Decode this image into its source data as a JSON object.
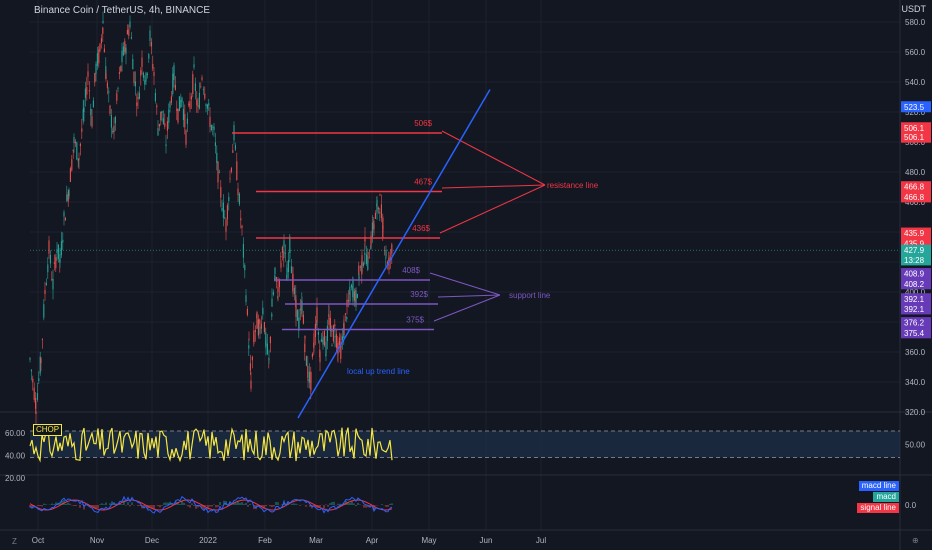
{
  "header": {
    "symbol_title": "Binance Coin / TetherUS, 4h, BINANCE",
    "currency": "USDT"
  },
  "chart_data": {
    "type": "candlestick",
    "price_axis": {
      "ticks": [
        580,
        560,
        540,
        520,
        500,
        480,
        460,
        440,
        420,
        400,
        380,
        360,
        340,
        320
      ],
      "range": [
        314,
        584
      ]
    },
    "time_axis": {
      "labels": [
        "Oct",
        "Nov",
        "Dec",
        "2022",
        "Feb",
        "Mar",
        "Apr",
        "May",
        "Jun",
        "Jul"
      ]
    },
    "price_path": [
      [
        30,
        355
      ],
      [
        36,
        325
      ],
      [
        41,
        355
      ],
      [
        45,
        400
      ],
      [
        49,
        428
      ],
      [
        53,
        405
      ],
      [
        57,
        430
      ],
      [
        60,
        420
      ],
      [
        64,
        448
      ],
      [
        69,
        470
      ],
      [
        74,
        500
      ],
      [
        79,
        490
      ],
      [
        84,
        520
      ],
      [
        88,
        545
      ],
      [
        92,
        515
      ],
      [
        96,
        550
      ],
      [
        100,
        560
      ],
      [
        103,
        580
      ],
      [
        106,
        545
      ],
      [
        110,
        520
      ],
      [
        114,
        505
      ],
      [
        118,
        535
      ],
      [
        122,
        555
      ],
      [
        126,
        565
      ],
      [
        130,
        580
      ],
      [
        134,
        545
      ],
      [
        138,
        525
      ],
      [
        142,
        555
      ],
      [
        146,
        540
      ],
      [
        150,
        570
      ],
      [
        154,
        545
      ],
      [
        158,
        510
      ],
      [
        162,
        520
      ],
      [
        166,
        500
      ],
      [
        170,
        525
      ],
      [
        174,
        545
      ],
      [
        178,
        520
      ],
      [
        182,
        530
      ],
      [
        186,
        505
      ],
      [
        190,
        525
      ],
      [
        194,
        545
      ],
      [
        198,
        520
      ],
      [
        202,
        545
      ],
      [
        206,
        530
      ],
      [
        210,
        515
      ],
      [
        214,
        505
      ],
      [
        218,
        480
      ],
      [
        222,
        460
      ],
      [
        226,
        445
      ],
      [
        230,
        475
      ],
      [
        234,
        505
      ],
      [
        238,
        470
      ],
      [
        242,
        440
      ],
      [
        246,
        400
      ],
      [
        249,
        365
      ],
      [
        251,
        340
      ],
      [
        254,
        370
      ],
      [
        257,
        380
      ],
      [
        260,
        375
      ],
      [
        263,
        390
      ],
      [
        266,
        365
      ],
      [
        269,
        352
      ],
      [
        272,
        390
      ],
      [
        275,
        410
      ],
      [
        278,
        400
      ],
      [
        281,
        420
      ],
      [
        284,
        430
      ],
      [
        287,
        410
      ],
      [
        290,
        432
      ],
      [
        293,
        405
      ],
      [
        296,
        390
      ],
      [
        299,
        378
      ],
      [
        302,
        392
      ],
      [
        305,
        365
      ],
      [
        308,
        345
      ],
      [
        311,
        340
      ],
      [
        314,
        368
      ],
      [
        317,
        384
      ],
      [
        320,
        360
      ],
      [
        323,
        372
      ],
      [
        326,
        362
      ],
      [
        329,
        382
      ],
      [
        332,
        370
      ],
      [
        335,
        375
      ],
      [
        338,
        364
      ],
      [
        341,
        362
      ],
      [
        344,
        376
      ],
      [
        347,
        388
      ],
      [
        350,
        398
      ],
      [
        353,
        403
      ],
      [
        356,
        395
      ],
      [
        359,
        412
      ],
      [
        362,
        418
      ],
      [
        365,
        430
      ],
      [
        368,
        420
      ],
      [
        371,
        436
      ],
      [
        374,
        445
      ],
      [
        377,
        455
      ],
      [
        380,
        460
      ],
      [
        383,
        442
      ],
      [
        386,
        425
      ],
      [
        389,
        420
      ],
      [
        392,
        428
      ]
    ],
    "levels": [
      {
        "label": "506$",
        "price": 506,
        "kind": "resistance",
        "from": "Jan",
        "to": "May"
      },
      {
        "label": "467$",
        "price": 467,
        "kind": "resistance",
        "from": "Jan",
        "to": "May"
      },
      {
        "label": "436$",
        "price": 436,
        "kind": "resistance",
        "from": "Jan",
        "to": "Apr"
      },
      {
        "label": "408$",
        "price": 408,
        "kind": "support",
        "from": "Feb",
        "to": "Apr"
      },
      {
        "label": "392$",
        "price": 392,
        "kind": "support",
        "from": "Feb",
        "to": "Apr"
      },
      {
        "label": "375$",
        "price": 375,
        "kind": "support",
        "from": "Feb",
        "to": "Apr"
      }
    ],
    "trend_line": {
      "label": "local up trend line",
      "from": [
        298,
        316
      ],
      "to": [
        490,
        535
      ]
    },
    "annotations": {
      "resistance": "resistance line",
      "support": "support line"
    },
    "price_tags": [
      {
        "text": "523.5",
        "price": 523.5,
        "color": "#2962ff"
      },
      {
        "text": "506.1",
        "price": 509.5,
        "color": "#f23645"
      },
      {
        "text": "506.1",
        "price": 503.2,
        "color": "#f23645"
      },
      {
        "text": "466.8",
        "price": 470.2,
        "color": "#f23645"
      },
      {
        "text": "466.8",
        "price": 463.4,
        "color": "#f23645"
      },
      {
        "text": "435.9",
        "price": 439.3,
        "color": "#f23645"
      },
      {
        "text": "435.9",
        "price": 432.5,
        "color": "#f23645"
      },
      {
        "text": "427.9",
        "price": 427.9,
        "color": "#26a69a"
      },
      {
        "text": "13:28",
        "price": 421.4,
        "color": "#26a69a"
      },
      {
        "text": "408.9",
        "price": 412.3,
        "color": "#673ab7"
      },
      {
        "text": "408.2",
        "price": 405.5,
        "color": "#673ab7"
      },
      {
        "text": "392.1",
        "price": 395.5,
        "color": "#673ab7"
      },
      {
        "text": "392.1",
        "price": 388.7,
        "color": "#673ab7"
      },
      {
        "text": "376.2",
        "price": 379.6,
        "color": "#673ab7"
      },
      {
        "text": "375.4",
        "price": 372.8,
        "color": "#673ab7"
      }
    ],
    "chop": {
      "label": "CHOP",
      "ticks": [
        60,
        40,
        20
      ],
      "bands": [
        61.8,
        38.2
      ],
      "value_tag": "50.00",
      "color": "#f5e642"
    },
    "macd": {
      "legend": [
        {
          "name": "macd line",
          "color": "#2962ff"
        },
        {
          "name": "macd",
          "color": "#26a69a"
        },
        {
          "name": "signal line",
          "color": "#f23645"
        }
      ],
      "value_tag": "0.0"
    }
  },
  "colors": {
    "bg": "#131722",
    "grid": "#1e222d",
    "up": "#26a69a",
    "down": "#ef5350",
    "resistance": "#f23645",
    "support": "#7e57c2",
    "trend": "#2962ff"
  },
  "corner": {
    "left": "Z",
    "right": "⊕"
  }
}
